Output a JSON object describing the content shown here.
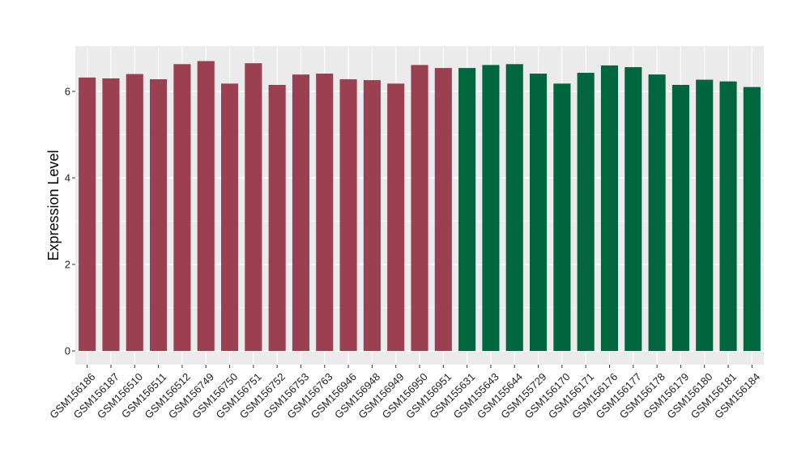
{
  "chart_data": {
    "type": "bar",
    "title": "",
    "xlabel": "",
    "ylabel": "Expression Level",
    "ylim": [
      0,
      7
    ],
    "yticks": [
      0,
      2,
      4,
      6
    ],
    "grid": true,
    "colors": {
      "group_a": "#9b4050",
      "group_b": "#006640",
      "panel_bg": "#ebebeb",
      "grid": "#ffffff"
    },
    "categories": [
      "GSM156186",
      "GSM156187",
      "GSM156510",
      "GSM156511",
      "GSM156512",
      "GSM156749",
      "GSM156750",
      "GSM156751",
      "GSM156752",
      "GSM156753",
      "GSM156763",
      "GSM156946",
      "GSM156948",
      "GSM156949",
      "GSM156950",
      "GSM156951",
      "GSM155631",
      "GSM155643",
      "GSM155644",
      "GSM155729",
      "GSM156170",
      "GSM156171",
      "GSM156176",
      "GSM156177",
      "GSM156178",
      "GSM156179",
      "GSM156180",
      "GSM156181",
      "GSM156184"
    ],
    "values": [
      6.32,
      6.3,
      6.4,
      6.28,
      6.63,
      6.7,
      6.18,
      6.65,
      6.15,
      6.39,
      6.41,
      6.28,
      6.26,
      6.18,
      6.61,
      6.54,
      6.54,
      6.61,
      6.63,
      6.41,
      6.18,
      6.43,
      6.6,
      6.56,
      6.39,
      6.15,
      6.27,
      6.23,
      6.1
    ],
    "groups": [
      "a",
      "a",
      "a",
      "a",
      "a",
      "a",
      "a",
      "a",
      "a",
      "a",
      "a",
      "a",
      "a",
      "a",
      "a",
      "a",
      "b",
      "b",
      "b",
      "b",
      "b",
      "b",
      "b",
      "b",
      "b",
      "b",
      "b",
      "b",
      "b"
    ]
  }
}
